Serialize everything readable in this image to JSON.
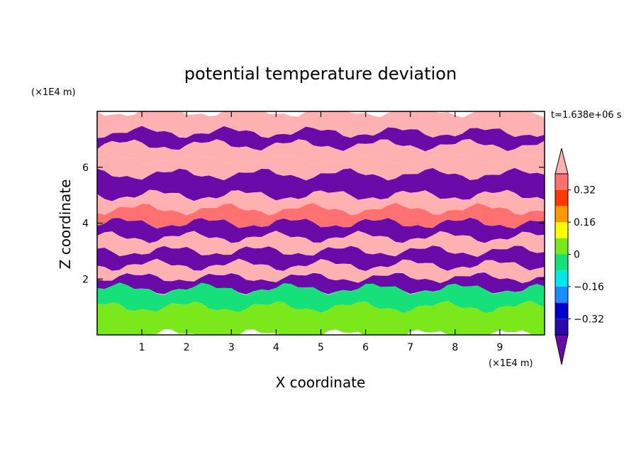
{
  "chart_data": {
    "type": "heatmap",
    "title": "potential temperature deviation",
    "xlabel": "X coordinate",
    "ylabel": "Z coordinate",
    "x_unit": "(×1E4 m)",
    "y_unit": "(×1E4 m)",
    "time_label": "t=1.638e+06 s",
    "x_ticks": [
      1,
      2,
      3,
      4,
      5,
      6,
      7,
      8,
      9
    ],
    "y_ticks": [
      2,
      4,
      6
    ],
    "xlim": [
      0,
      10
    ],
    "ylim": [
      0,
      8
    ],
    "colorbar": {
      "levels": [
        -0.4,
        -0.32,
        -0.24,
        -0.16,
        -0.08,
        0,
        0.08,
        0.16,
        0.24,
        0.32,
        0.4
      ],
      "tick_labels": [
        "0.32",
        "0.16",
        "0",
        "−0.16",
        "−0.32"
      ],
      "tick_values": [
        0.32,
        0.16,
        0,
        -0.16,
        -0.32
      ],
      "colors": [
        "#6a0aa8",
        "#2a0aa8",
        "#0000cc",
        "#1a8cff",
        "#00e8e8",
        "#16e07a",
        "#7ae81a",
        "#ffff00",
        "#ff9900",
        "#ff3800",
        "#ff7070",
        "#ffb0b0"
      ],
      "extend": "both"
    },
    "layers": [
      {
        "z": [
          7.25,
          8.0
        ],
        "value": 0.45
      },
      {
        "z": [
          6.8,
          7.25
        ],
        "value": -0.45
      },
      {
        "z": [
          6.3,
          6.8
        ],
        "value": 0.45
      },
      {
        "z": [
          5.75,
          6.3
        ],
        "value": 0.45
      },
      {
        "z": [
          5.0,
          5.75
        ],
        "value": -0.45
      },
      {
        "z": [
          4.5,
          5.0
        ],
        "value": 0.45
      },
      {
        "z": [
          4.0,
          4.5
        ],
        "value": 0.35
      },
      {
        "z": [
          3.5,
          4.0
        ],
        "value": -0.45
      },
      {
        "z": [
          3.0,
          3.5
        ],
        "value": 0.45
      },
      {
        "z": [
          2.5,
          3.0
        ],
        "value": -0.45
      },
      {
        "z": [
          2.05,
          2.5
        ],
        "value": 0.45
      },
      {
        "z": [
          1.65,
          2.05
        ],
        "value": -0.45
      },
      {
        "z": [
          1.0,
          1.65
        ],
        "value": -0.05
      },
      {
        "z": [
          0.0,
          1.0
        ],
        "value": 0.05
      }
    ]
  }
}
